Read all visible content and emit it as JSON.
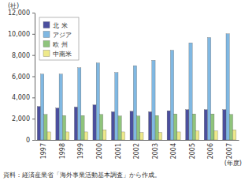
{
  "chart_data": {
    "type": "bar",
    "y_label": "(社)",
    "x_label": "(年度)",
    "source": "資料：経済産業省「海外事業活動基本調査」から作成。",
    "categories": [
      "1997",
      "1998",
      "1999",
      "2000",
      "2001",
      "2002",
      "2003",
      "2004",
      "2005",
      "2006",
      "2007"
    ],
    "series": [
      {
        "name": "北 米",
        "color": "#4b4f9e",
        "values": [
          3150,
          3000,
          3100,
          3300,
          2650,
          2700,
          2650,
          2750,
          2850,
          2850,
          2850
        ]
      },
      {
        "name": "アジア",
        "color": "#80b8e2",
        "values": [
          6200,
          6200,
          6800,
          7250,
          6350,
          7000,
          7500,
          8450,
          9150,
          9650,
          10000
        ]
      },
      {
        "name": "欧 州",
        "color": "#8fc47c",
        "values": [
          2400,
          2300,
          2300,
          2400,
          2250,
          2250,
          2300,
          2450,
          2450,
          2450,
          2400
        ]
      },
      {
        "name": "中南米",
        "color": "#eee98a",
        "values": [
          750,
          750,
          750,
          950,
          750,
          700,
          700,
          750,
          850,
          850,
          950
        ]
      }
    ],
    "ylim": [
      0,
      12000
    ],
    "yticks": [
      0,
      {
        "value": 2000,
        "label": "2,000"
      },
      {
        "value": 4000,
        "label": "4,000"
      },
      {
        "value": 6000,
        "label": "6,000"
      },
      {
        "value": 8000,
        "label": "8,000"
      },
      {
        "value": 10000,
        "label": "10,000"
      },
      {
        "value": 12000,
        "label": "12,000"
      }
    ],
    "grid": false,
    "legend": "upper left"
  }
}
